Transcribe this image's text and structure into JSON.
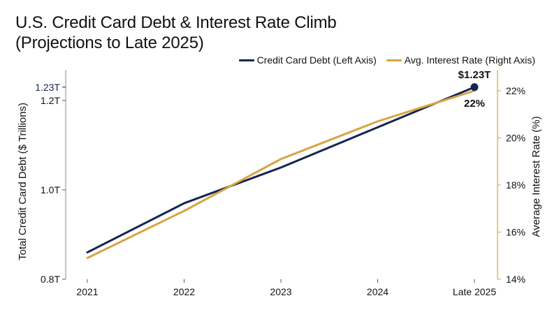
{
  "title_line1": "U.S. Credit Card Debt & Interest Rate Climb",
  "title_line2": "(Projections to Late 2025)",
  "colors": {
    "debt": "#15254f",
    "rate": "#d9a441"
  },
  "chart_data": {
    "type": "line",
    "categories": [
      "2021",
      "2022",
      "2023",
      "2024",
      "Late 2025"
    ],
    "series": [
      {
        "name": "Credit Card Debt (Left Axis)",
        "axis": "left",
        "values": [
          0.86,
          0.97,
          1.05,
          1.14,
          1.23
        ]
      },
      {
        "name": "Avg. Interest Rate (Right Axis)",
        "axis": "right",
        "values": [
          14.9,
          16.9,
          19.1,
          20.7,
          22.0
        ]
      }
    ],
    "ylabel_left": "Total Credit Card Debt ($ Trillions)",
    "ylabel_right": "Average Interest Rate (%)",
    "ylim_left": [
      0.8,
      1.25
    ],
    "ylim_right": [
      14,
      23
    ],
    "yticks_left": [
      "0.8T",
      "1.0T",
      "1.2T"
    ],
    "yticks_left_values": [
      0.8,
      1.0,
      1.2
    ],
    "yticks_left_highlight": "1.23T",
    "yticks_left_highlight_value": 1.23,
    "yticks_right": [
      "14%",
      "16%",
      "18%",
      "20%",
      "22%"
    ],
    "yticks_right_values": [
      14,
      16,
      18,
      20,
      22
    ],
    "annotations": {
      "debt_end": "$1.23T",
      "rate_end": "22%"
    },
    "grid": false,
    "legend": "top-right"
  }
}
